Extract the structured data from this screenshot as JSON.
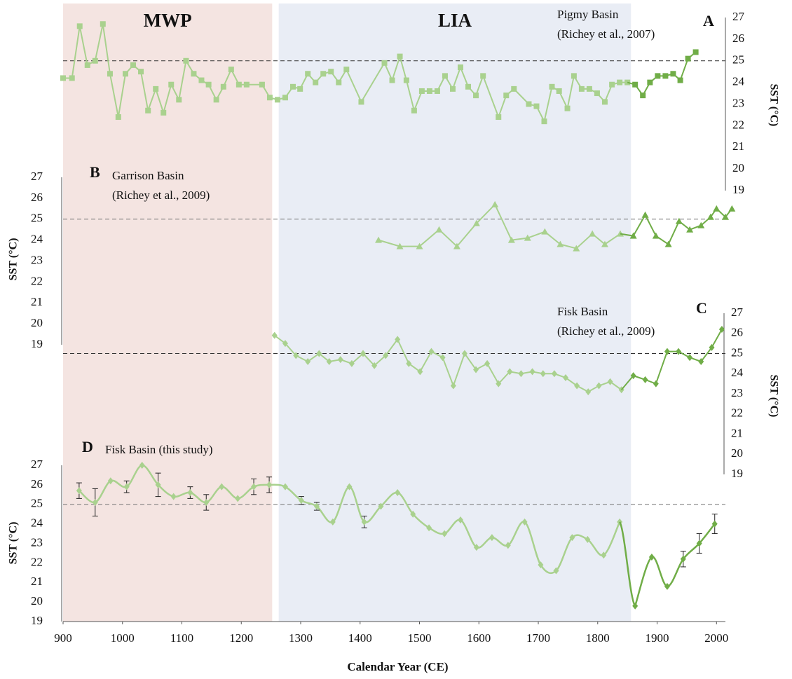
{
  "chart_data": [
    {
      "type": "line",
      "label": "A",
      "title": [
        "Pigmy Basin",
        "(Richey et al., 2007)"
      ],
      "ylabel": "SST (°C)",
      "axis_side": "right",
      "ylim": [
        19,
        27
      ],
      "yticks": [
        19,
        20,
        21,
        22,
        23,
        24,
        25,
        26,
        27
      ],
      "reference": 25,
      "periods": [
        {
          "label": "MWP",
          "start": 900,
          "end": 1252,
          "color": "#f4e4e1"
        },
        {
          "label": "LIA",
          "start": 1263,
          "end": 1856,
          "color": "#e9edf5"
        }
      ],
      "series": [
        {
          "color": "#a9d18e",
          "marker": "square",
          "x": [
            900,
            915,
            928,
            941,
            954,
            967,
            979,
            993,
            1005,
            1018,
            1031,
            1043,
            1056,
            1069,
            1082,
            1095,
            1107,
            1120,
            1133,
            1145,
            1158,
            1170,
            1183,
            1196,
            1209,
            1235,
            1248,
            1261,
            1274,
            1287,
            1299,
            1312,
            1325,
            1338,
            1351,
            1364,
            1377,
            1402,
            1441,
            1454,
            1467,
            1478,
            1491,
            1504,
            1517,
            1530,
            1543,
            1556,
            1569,
            1582,
            1595,
            1607,
            1633,
            1646,
            1659,
            1684,
            1697,
            1710,
            1723,
            1735,
            1749,
            1760,
            1773,
            1786,
            1799,
            1812,
            1824,
            1837,
            1850
          ],
          "values": [
            24.2,
            24.2,
            26.6,
            24.8,
            25.0,
            26.7,
            24.4,
            22.4,
            24.4,
            24.8,
            24.5,
            22.7,
            23.7,
            22.6,
            23.9,
            23.2,
            25.0,
            24.4,
            24.1,
            23.9,
            23.2,
            23.8,
            24.6,
            23.9,
            23.9,
            23.9,
            23.3,
            23.2,
            23.3,
            23.8,
            23.7,
            24.4,
            24.0,
            24.4,
            24.5,
            24.0,
            24.6,
            23.1,
            24.9,
            24.1,
            25.2,
            24.1,
            22.7,
            23.6,
            23.6,
            23.6,
            24.3,
            23.7,
            24.7,
            23.8,
            23.4,
            24.3,
            22.4,
            23.4,
            23.7,
            23.0,
            22.9,
            22.2,
            23.8,
            23.6,
            22.8,
            24.3,
            23.7,
            23.7,
            23.5,
            23.1,
            23.9,
            24.0,
            24.0
          ]
        },
        {
          "color": "#70ad47",
          "marker": "square",
          "x": [
            1863,
            1876,
            1888,
            1901,
            1914,
            1927,
            1939,
            1952,
            1965
          ],
          "values": [
            23.9,
            23.4,
            24.0,
            24.3,
            24.3,
            24.4,
            24.1,
            25.1,
            25.4
          ]
        }
      ]
    },
    {
      "type": "line",
      "label": "B",
      "title": [
        "Garrison Basin",
        "(Richey et al., 2009)"
      ],
      "ylabel": "SST (°C)",
      "axis_side": "left",
      "ylim": [
        19,
        27
      ],
      "yticks": [
        19,
        20,
        21,
        22,
        23,
        24,
        25,
        26,
        27
      ],
      "reference": 25,
      "series": [
        {
          "color": "#a9d18e",
          "marker": "triangle",
          "x": [
            1431,
            1467,
            1500,
            1533,
            1563,
            1596,
            1627,
            1655,
            1682,
            1711,
            1737,
            1764,
            1791,
            1812,
            1838
          ],
          "values": [
            24.0,
            23.7,
            23.7,
            24.5,
            23.7,
            24.8,
            25.7,
            24.0,
            24.1,
            24.4,
            23.8,
            23.6,
            24.3,
            23.8,
            24.3
          ]
        },
        {
          "color": "#70ad47",
          "marker": "triangle",
          "x": [
            1860,
            1880,
            1898,
            1919,
            1937,
            1955,
            1974,
            1990,
            2000,
            2015,
            2026
          ],
          "values": [
            24.2,
            25.2,
            24.2,
            23.8,
            24.9,
            24.5,
            24.7,
            25.1,
            25.5,
            25.1,
            25.5
          ]
        }
      ]
    },
    {
      "type": "line",
      "label": "C",
      "title": [
        "Fisk Basin",
        "(Richey et al., 2009)"
      ],
      "ylabel": "SST (°C)",
      "axis_side": "right",
      "ylim": [
        19,
        27
      ],
      "yticks": [
        19,
        20,
        21,
        22,
        23,
        24,
        25,
        26,
        27
      ],
      "reference": 25,
      "series": [
        {
          "color": "#a9d18e",
          "marker": "diamond",
          "x": [
            1256,
            1274,
            1292,
            1312,
            1331,
            1348,
            1367,
            1386,
            1405,
            1424,
            1443,
            1463,
            1482,
            1501,
            1520,
            1539,
            1557,
            1576,
            1595,
            1614,
            1633,
            1652,
            1671,
            1690,
            1708,
            1727,
            1746,
            1765,
            1784,
            1802,
            1821,
            1840
          ],
          "values": [
            25.9,
            25.5,
            24.9,
            24.6,
            25.0,
            24.6,
            24.7,
            24.5,
            25.0,
            24.4,
            24.9,
            25.7,
            24.5,
            24.1,
            25.1,
            24.8,
            23.4,
            25.0,
            24.2,
            24.5,
            23.5,
            24.1,
            24.0,
            24.1,
            24.0,
            24.0,
            23.8,
            23.4,
            23.1,
            23.4,
            23.6,
            23.2
          ]
        },
        {
          "color": "#70ad47",
          "marker": "diamond",
          "x": [
            1860,
            1880,
            1898,
            1917,
            1936,
            1955,
            1974,
            1992,
            2009
          ],
          "values": [
            23.9,
            23.7,
            23.5,
            25.1,
            25.1,
            24.8,
            24.6,
            25.3,
            26.2
          ]
        }
      ]
    },
    {
      "type": "line",
      "label": "D",
      "title": [
        "Fisk Basin (this study)"
      ],
      "ylabel": "SST (°C)",
      "axis_side": "left",
      "ylim": [
        19,
        27
      ],
      "yticks": [
        19,
        20,
        21,
        22,
        23,
        24,
        25,
        26,
        27
      ],
      "reference": 25,
      "smooth": true,
      "xlim": [
        900,
        2015
      ],
      "xticks": [
        900,
        1000,
        1100,
        1200,
        1300,
        1400,
        1500,
        1600,
        1700,
        1800,
        1900,
        2000
      ],
      "xlabel": "Calendar Year (CE)",
      "series": [
        {
          "color": "#a9d18e",
          "marker": "diamond",
          "x": [
            927,
            954,
            980,
            1007,
            1033,
            1060,
            1086,
            1114,
            1141,
            1167,
            1194,
            1221,
            1247,
            1274,
            1301,
            1327,
            1354,
            1382,
            1407,
            1435,
            1463,
            1489,
            1516,
            1542,
            1569,
            1596,
            1622,
            1649,
            1677,
            1704,
            1730,
            1757,
            1783,
            1810,
            1837
          ],
          "values": [
            25.7,
            25.1,
            26.2,
            25.9,
            27.0,
            26.0,
            25.4,
            25.6,
            25.1,
            25.9,
            25.3,
            25.9,
            26.0,
            25.9,
            25.2,
            24.9,
            24.1,
            25.9,
            24.1,
            24.9,
            25.6,
            24.5,
            23.8,
            23.5,
            24.2,
            22.8,
            23.3,
            22.9,
            24.1,
            21.9,
            21.6,
            23.3,
            23.2,
            22.4,
            24.1
          ],
          "errors": [
            0.4,
            0.7,
            null,
            0.3,
            null,
            0.6,
            null,
            0.3,
            0.4,
            null,
            null,
            0.4,
            0.4,
            null,
            0.2,
            0.2,
            null,
            null,
            0.3,
            null,
            null,
            null,
            null,
            null,
            null,
            null,
            null,
            null,
            null,
            null,
            null,
            null,
            null,
            null,
            null
          ]
        },
        {
          "color": "#70ad47",
          "marker": "diamond",
          "x": [
            1863,
            1891,
            1917,
            1944,
            1971,
            1997
          ],
          "values": [
            19.8,
            22.3,
            20.8,
            22.2,
            23.0,
            24.0
          ],
          "errors": [
            null,
            null,
            null,
            0.4,
            0.5,
            0.5
          ]
        }
      ]
    }
  ]
}
